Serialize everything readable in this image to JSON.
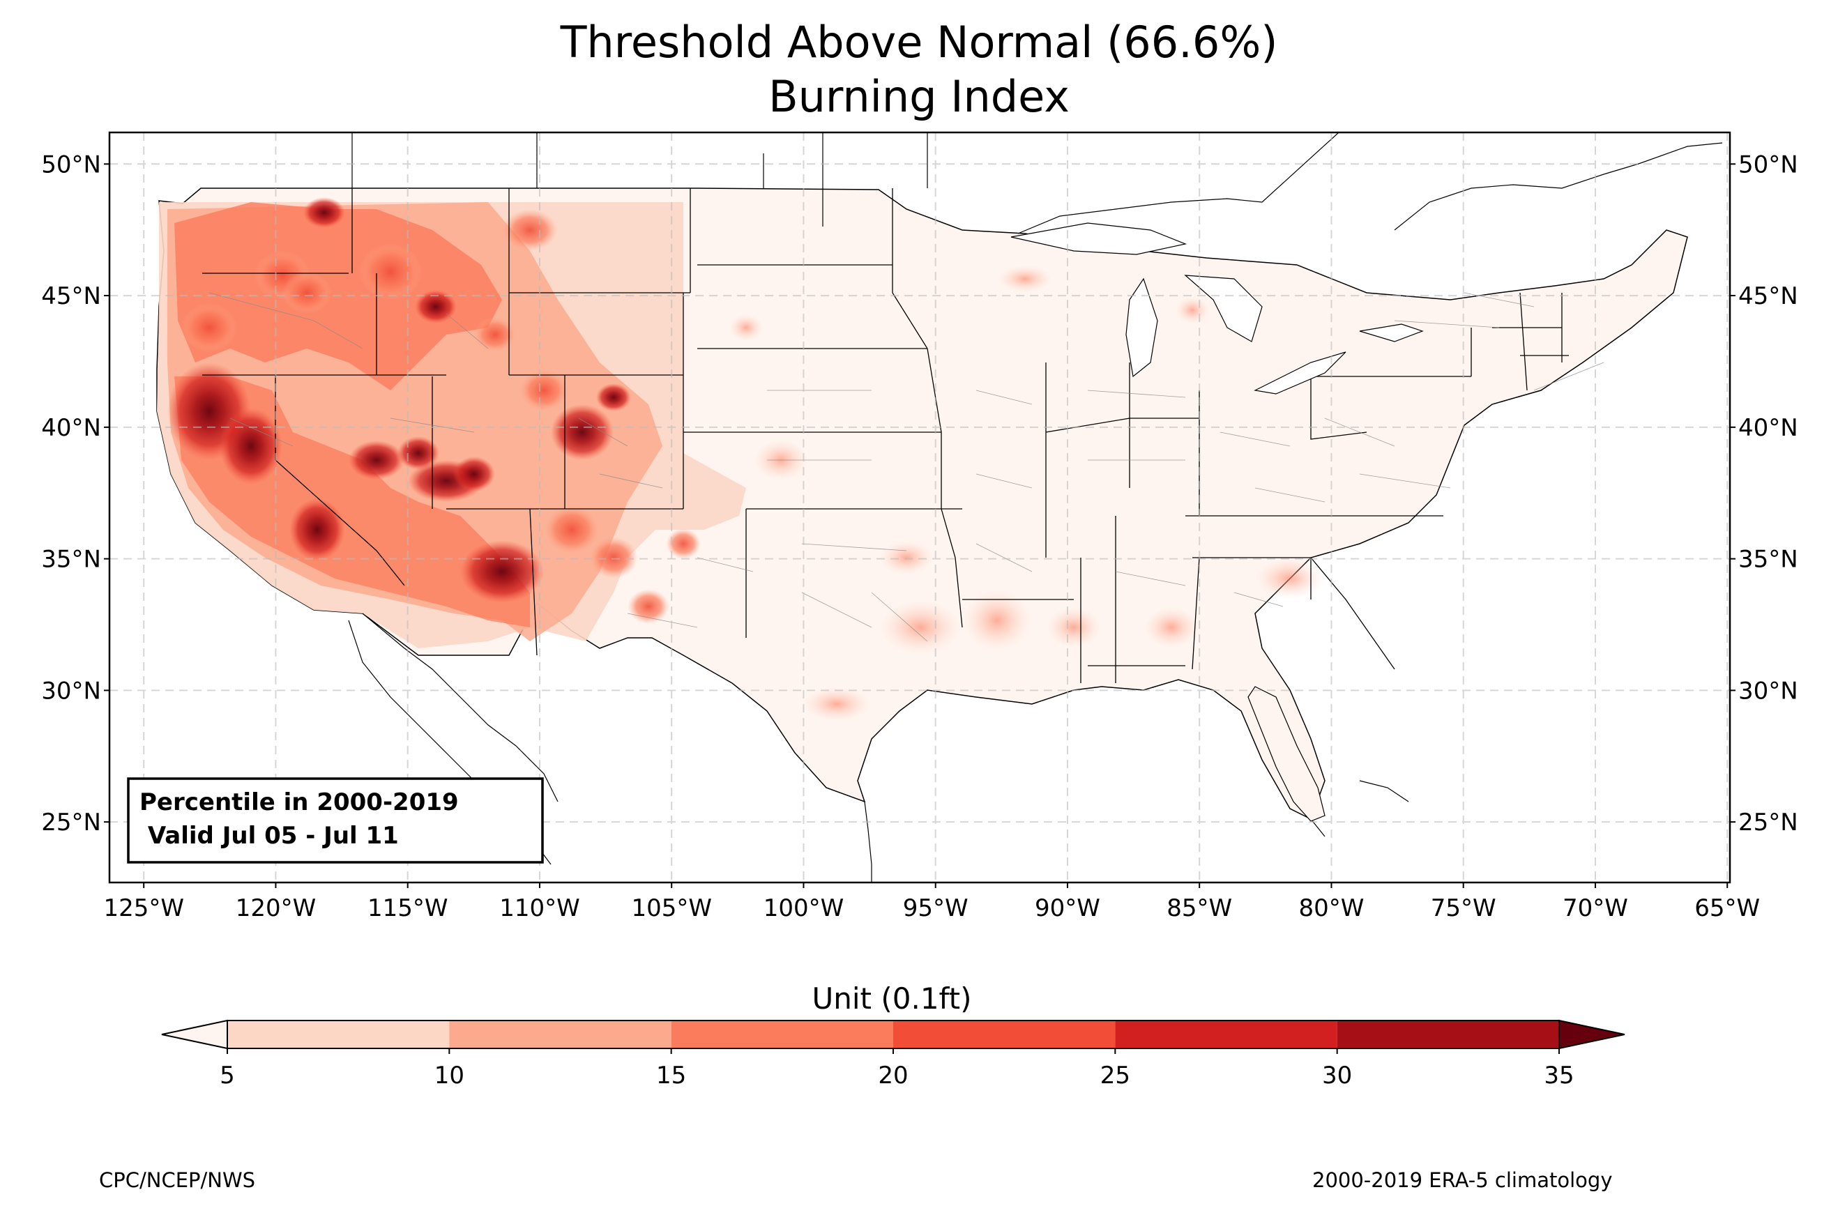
{
  "title_line1": "Threshold Above Normal (66.6%)",
  "title_line2": "Burning Index",
  "map": {
    "lon_range": [
      -126.3,
      -64.9
    ],
    "lat_range": [
      22.7,
      51.2
    ],
    "lat_labels": [
      "50°N",
      "45°N",
      "40°N",
      "35°N",
      "30°N",
      "25°N"
    ],
    "lat_values": [
      50,
      45,
      40,
      35,
      30,
      25
    ],
    "lon_labels": [
      "125°W",
      "120°W",
      "115°W",
      "110°W",
      "105°W",
      "100°W",
      "95°W",
      "90°W",
      "85°W",
      "80°W",
      "75°W",
      "70°W",
      "65°W"
    ],
    "lon_values": [
      -125,
      -120,
      -115,
      -110,
      -105,
      -100,
      -95,
      -90,
      -85,
      -80,
      -75,
      -70,
      -65
    ],
    "annotation_line1": "Percentile in 2000-2019",
    "annotation_line2": " Valid Jul 05 - Jul 11"
  },
  "colorbar": {
    "label": "Unit (0.1ft)",
    "ticks": [
      "5",
      "10",
      "15",
      "20",
      "25",
      "30",
      "35"
    ],
    "colors": [
      "#fff5f0",
      "#fcd7c6",
      "#fcaa8e",
      "#fb7c5c",
      "#f14d37",
      "#d1201f",
      "#a50f15",
      "#67000d"
    ]
  },
  "footer": {
    "left": "CPC/NCEP/NWS",
    "right": "2000-2019 ERA-5 climatology"
  }
}
